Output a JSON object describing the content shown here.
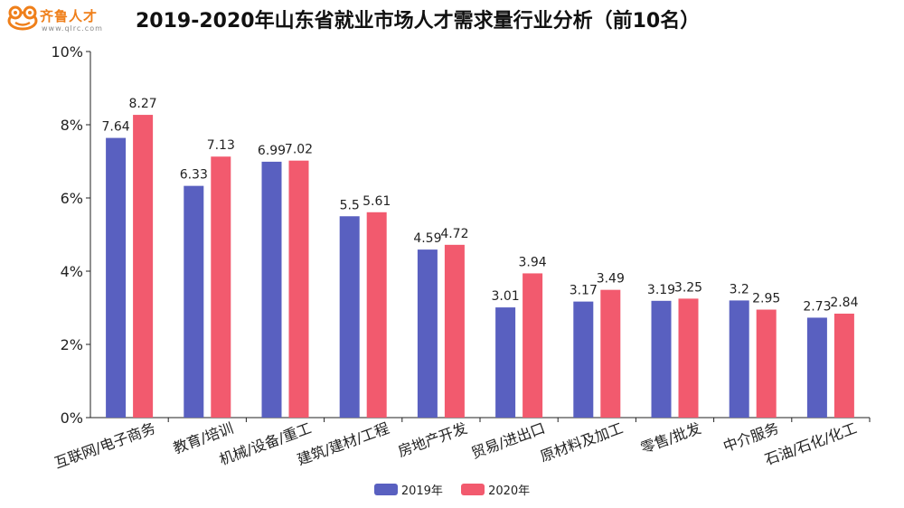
{
  "header": {
    "logo_text": "齐鲁人才",
    "logo_sub": "www.qlrc.com",
    "title": "2019-2020年山东省就业市场人才需求量行业分析（前10名）"
  },
  "colors": {
    "series_2019": "#5960c0",
    "series_2020": "#f25a6e"
  },
  "chart_data": {
    "type": "bar",
    "title": "2019-2020年山东省就业市场人才需求量行业分析（前10名）",
    "categories": [
      "互联网/电子商务",
      "教育/培训",
      "机械/设备/重工",
      "建筑/建材/工程",
      "房地产开发",
      "贸易/进出口",
      "原材料及加工",
      "零售/批发",
      "中介服务",
      "石油/石化/化工"
    ],
    "series": [
      {
        "name": "2019年",
        "values": [
          7.64,
          6.33,
          6.99,
          5.5,
          4.59,
          3.01,
          3.17,
          3.19,
          3.2,
          2.73
        ],
        "labels": [
          "7.64",
          "6.33",
          "6.99",
          "5.5",
          "4.59",
          "3.01",
          "3.17",
          "3.19",
          "3.2",
          "2.73"
        ]
      },
      {
        "name": "2020年",
        "values": [
          8.27,
          7.13,
          7.02,
          5.61,
          4.72,
          3.94,
          3.49,
          3.25,
          2.95,
          2.84
        ],
        "labels": [
          "8.27",
          "7.13",
          "7.02",
          "5.61",
          "4.72",
          "3.94",
          "3.49",
          "3.25",
          "2.95",
          "2.84"
        ]
      }
    ],
    "ylim": [
      0,
      10
    ],
    "yticks": [
      "0%",
      "2%",
      "4%",
      "6%",
      "8%",
      "10%"
    ],
    "ytick_values": [
      0,
      2,
      4,
      6,
      8,
      10
    ],
    "grid": false,
    "legend": "bottom-center"
  }
}
